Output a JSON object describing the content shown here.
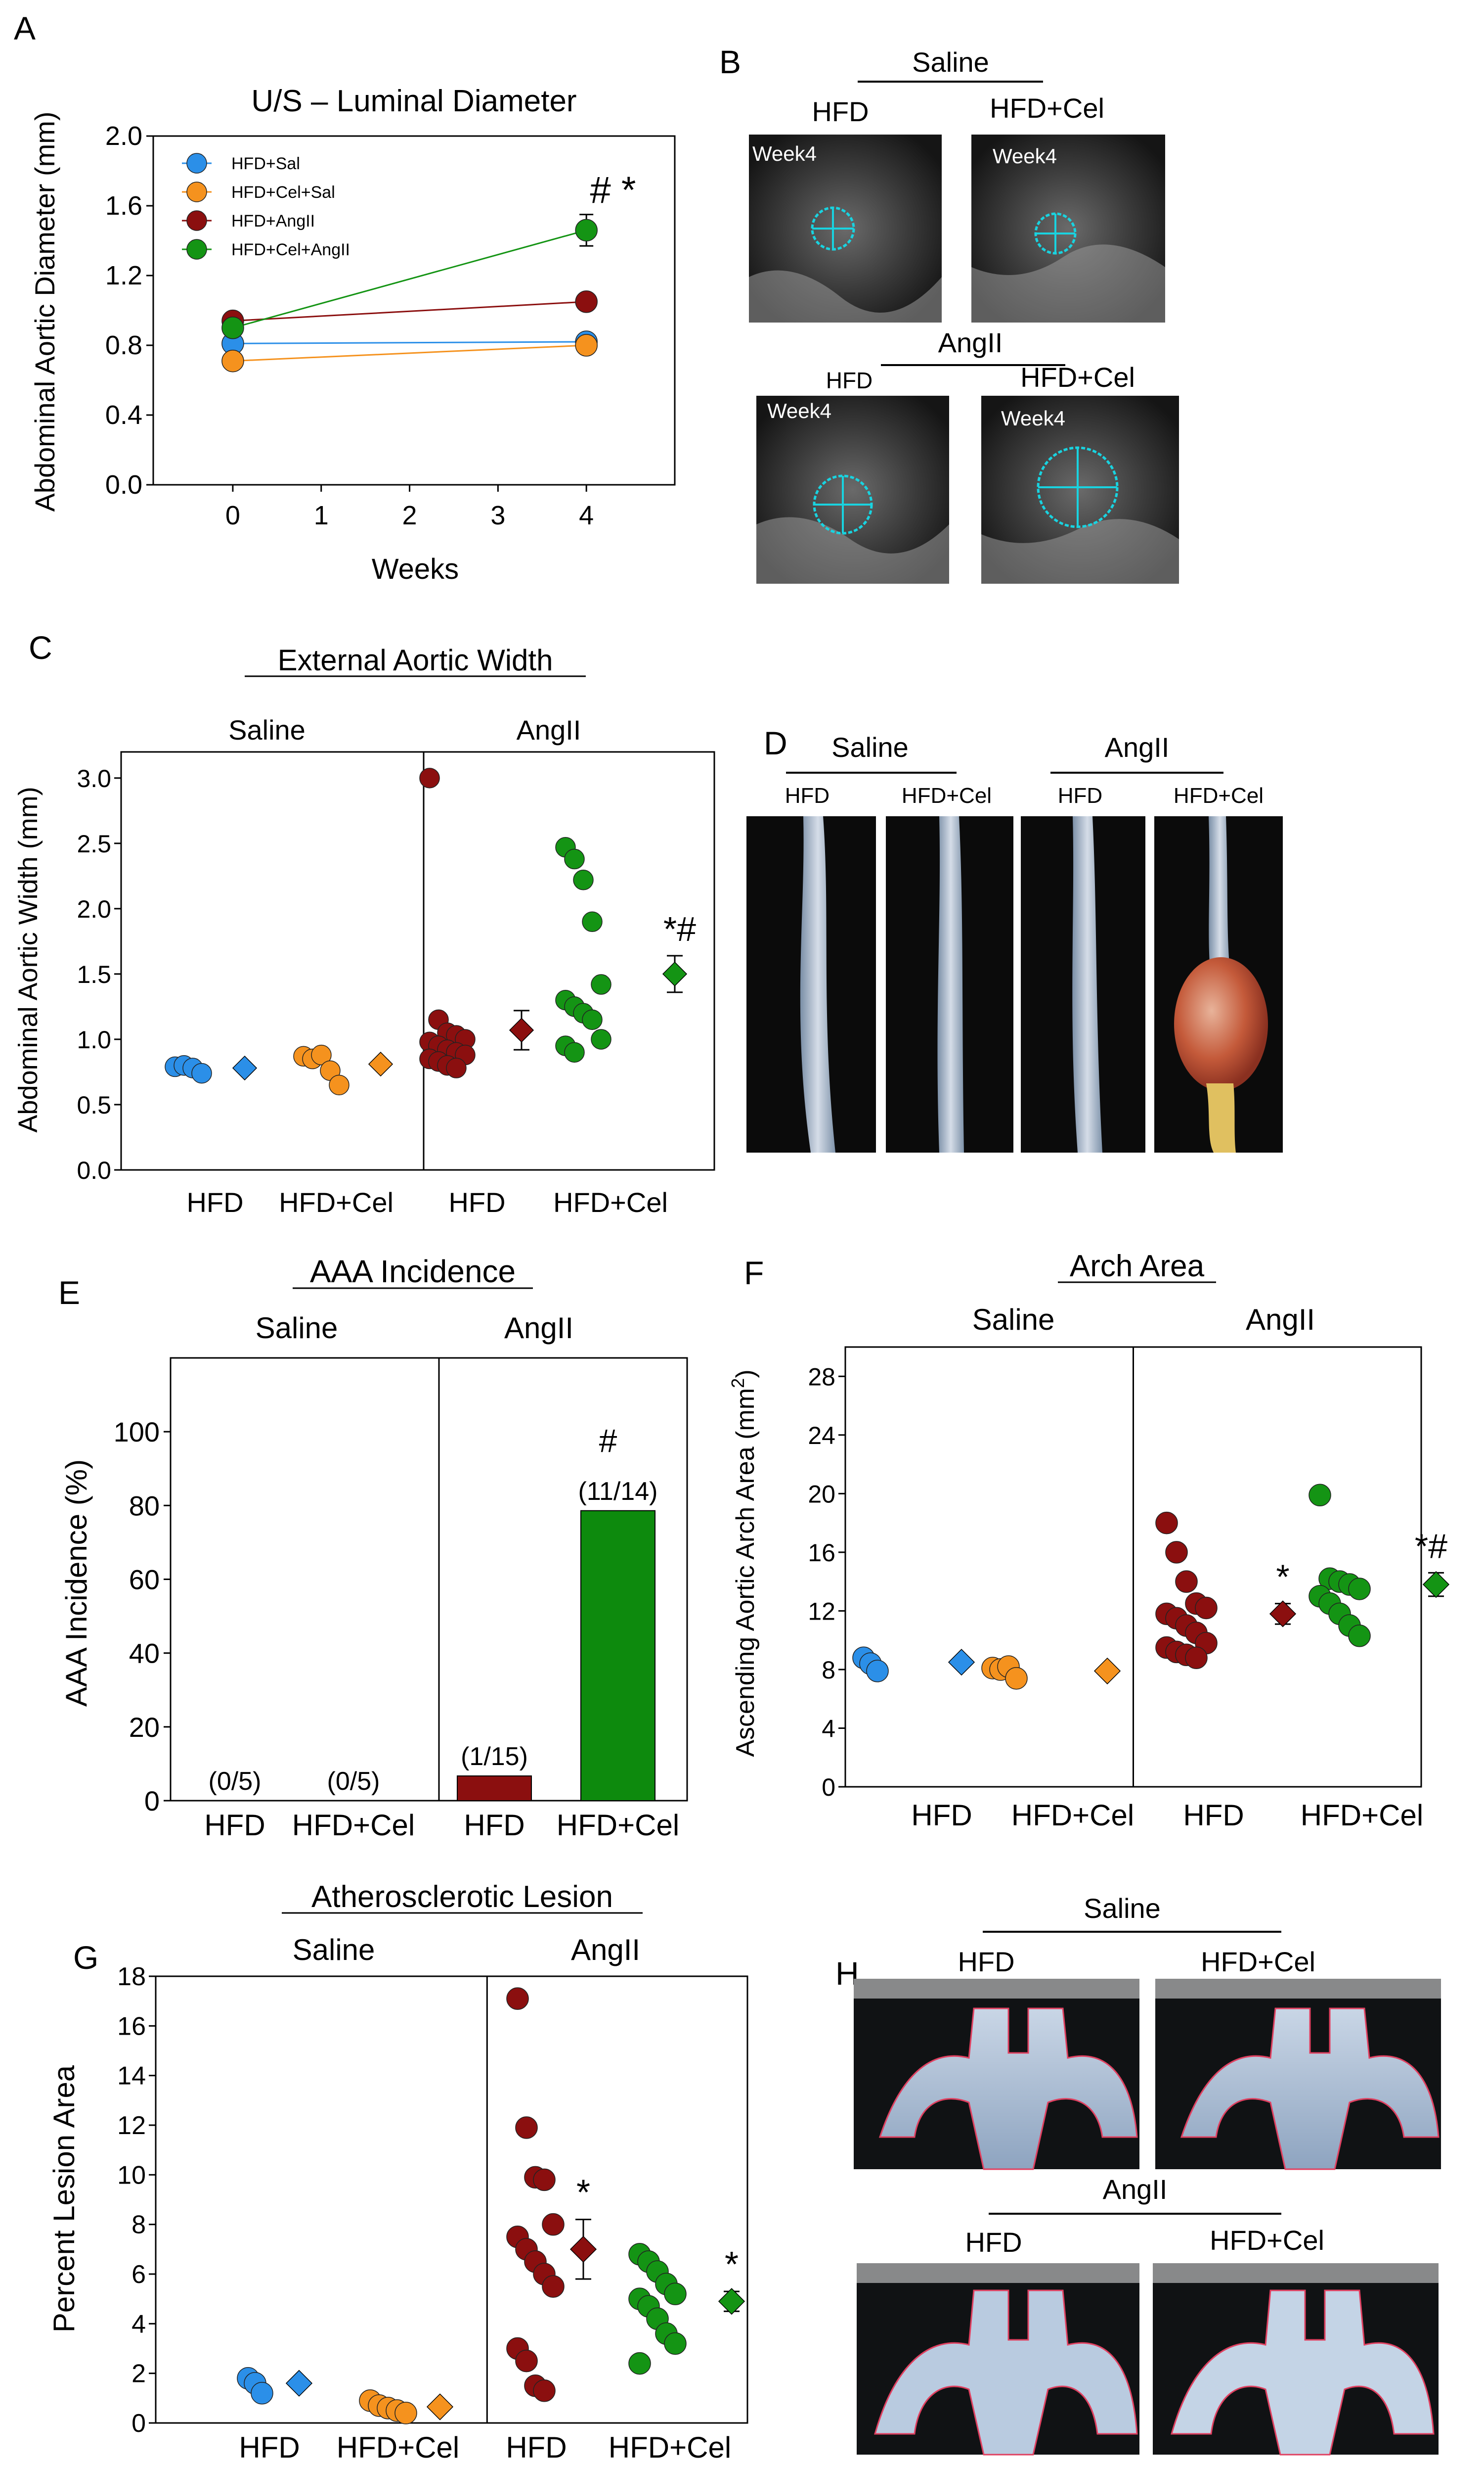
{
  "colors": {
    "blue": "#2b8fe8",
    "orange": "#f5921e",
    "darkred": "#8b0f0f",
    "green": "#149414",
    "cyan": "#19d3e0",
    "pink": "#e04060"
  },
  "panelLetters": {
    "A": "A",
    "B": "B",
    "C": "C",
    "D": "D",
    "E": "E",
    "F": "F",
    "G": "G",
    "H": "H"
  },
  "chart_data": [
    {
      "panel": "A",
      "type": "line",
      "title": "U/S – Luminal Diameter",
      "xlabel": "Weeks",
      "ylabel": "Abdominal Aortic Diameter (mm)",
      "xlim": [
        -0.9,
        5.0
      ],
      "ylim": [
        0.0,
        2.0
      ],
      "xticks": [
        "0",
        "1",
        "2",
        "3",
        "4"
      ],
      "yticks": [
        "0.0",
        "0.4",
        "0.8",
        "1.2",
        "1.6",
        "2.0"
      ],
      "x": [
        0,
        4
      ],
      "series": [
        {
          "name": "HFD+Sal",
          "color": "#2b8fe8",
          "values": [
            0.81,
            0.82
          ]
        },
        {
          "name": "HFD+Cel+Sal",
          "color": "#f5921e",
          "values": [
            0.71,
            0.8
          ]
        },
        {
          "name": "HFD+AngII",
          "color": "#8b0f0f",
          "values": [
            0.94,
            1.05
          ]
        },
        {
          "name": "HFD+Cel+AngII",
          "color": "#149414",
          "values": [
            0.9,
            1.46
          ]
        }
      ],
      "error_bars": [
        {
          "series": 3,
          "x": 4,
          "low": 1.37,
          "high": 1.55
        }
      ],
      "annotation": "# *"
    },
    {
      "panel": "C",
      "type": "scatter",
      "title": "External Aortic Width",
      "ylabel": "Abdominal Aortic Width (mm)",
      "ylim": [
        0.0,
        3.2
      ],
      "yticks": [
        "0.0",
        "0.5",
        "1.0",
        "1.5",
        "2.0",
        "2.5",
        "3.0"
      ],
      "xcats": [
        "HFD",
        "HFD+Cel",
        "HFD",
        "HFD+Cel"
      ],
      "group_labels": [
        "Saline",
        "AngII"
      ],
      "groups": [
        {
          "name": "HFD",
          "color": "#2b8fe8",
          "points": [
            0.79,
            0.8,
            0.78,
            0.74
          ],
          "mean": 0.78,
          "sem": 0.02
        },
        {
          "name": "HFD+Cel",
          "color": "#f5921e",
          "points": [
            0.87,
            0.85,
            0.88,
            0.76,
            0.65
          ],
          "mean": 0.81,
          "sem": 0.03
        },
        {
          "name": "HFD",
          "color": "#8b0f0f",
          "points": [
            3.0,
            1.15,
            1.05,
            1.03,
            1.0,
            0.98,
            0.95,
            0.92,
            0.9,
            0.88,
            0.85,
            0.83,
            0.8,
            0.78
          ],
          "mean": 1.07,
          "sem": 0.15,
          "annotation": ""
        },
        {
          "name": "HFD+Cel",
          "color": "#149414",
          "points": [
            2.47,
            2.38,
            2.22,
            1.9,
            1.42,
            1.3,
            1.25,
            1.2,
            1.15,
            1.0,
            0.95,
            0.9
          ],
          "mean": 1.5,
          "sem": 0.14,
          "annotation": "*#"
        }
      ]
    },
    {
      "panel": "E",
      "type": "bar",
      "title": "AAA Incidence",
      "ylabel": "AAA Incidence (%)",
      "ylim": [
        0,
        120
      ],
      "yticks": [
        "0",
        "20",
        "40",
        "60",
        "80",
        "100"
      ],
      "categories": [
        "HFD",
        "HFD+Cel",
        "HFD",
        "HFD+Cel"
      ],
      "group_labels": [
        "Saline",
        "AngII"
      ],
      "values": [
        0,
        0,
        6.7,
        78.6
      ],
      "colors": [
        "#2b8fe8",
        "#f5921e",
        "#8b0f0f",
        "#0d8a0d"
      ],
      "data_labels": [
        "(0/5)",
        "(0/5)",
        "(1/15)",
        "(11/14)"
      ],
      "annotation": "#"
    },
    {
      "panel": "F",
      "type": "scatter",
      "title": "Arch Area",
      "ylabel": "Ascending Aortic Arch Area (mm",
      "ylabel_sup": "2",
      "ylabel_end": ")",
      "ylim": [
        0,
        30
      ],
      "yticks": [
        "0",
        "4",
        "8",
        "12",
        "16",
        "20",
        "24",
        "28"
      ],
      "xcats": [
        "HFD",
        "HFD+Cel",
        "HFD",
        "HFD+Cel"
      ],
      "group_labels": [
        "Saline",
        "AngII"
      ],
      "groups": [
        {
          "name": "HFD",
          "color": "#2b8fe8",
          "points": [
            8.8,
            8.4,
            7.9
          ],
          "mean": 8.5,
          "sem": 0.25
        },
        {
          "name": "HFD+Cel",
          "color": "#f5921e",
          "points": [
            8.1,
            8.0,
            8.2,
            7.4
          ],
          "mean": 7.9,
          "sem": 0.2
        },
        {
          "name": "HFD",
          "color": "#8b0f0f",
          "points": [
            18.0,
            16.0,
            14.0,
            12.5,
            12.2,
            11.8,
            11.5,
            11.0,
            10.5,
            9.8,
            9.5,
            9.2,
            9.0,
            8.8
          ],
          "mean": 11.8,
          "sem": 0.7,
          "annotation": "*"
        },
        {
          "name": "HFD+Cel",
          "color": "#149414",
          "points": [
            19.9,
            14.2,
            14.0,
            13.8,
            13.5,
            13.0,
            12.5,
            11.8,
            11.0,
            10.3
          ],
          "mean": 13.8,
          "sem": 0.8,
          "annotation": "*#"
        }
      ]
    },
    {
      "panel": "G",
      "type": "scatter",
      "title": "Atherosclerotic Lesion",
      "ylabel": "Percent Lesion Area",
      "ylim": [
        0,
        18
      ],
      "yticks": [
        "0",
        "2",
        "4",
        "6",
        "8",
        "10",
        "12",
        "14",
        "16",
        "18"
      ],
      "xcats": [
        "HFD",
        "HFD+Cel",
        "HFD",
        "HFD+Cel"
      ],
      "group_labels": [
        "Saline",
        "AngII"
      ],
      "groups": [
        {
          "name": "HFD",
          "color": "#2b8fe8",
          "points": [
            1.8,
            1.6,
            1.2
          ],
          "mean": 1.6,
          "sem": 0.15
        },
        {
          "name": "HFD+Cel",
          "color": "#f5921e",
          "points": [
            0.9,
            0.7,
            0.6,
            0.5,
            0.4
          ],
          "mean": 0.65,
          "sem": 0.1
        },
        {
          "name": "HFD",
          "color": "#8b0f0f",
          "points": [
            17.1,
            11.9,
            9.9,
            9.8,
            8.0,
            7.5,
            7.0,
            6.5,
            6.0,
            5.5,
            3.0,
            2.5,
            1.5,
            1.3
          ],
          "mean": 7.0,
          "sem": 1.2,
          "annotation": "*"
        },
        {
          "name": "HFD+Cel",
          "color": "#149414",
          "points": [
            6.8,
            6.5,
            6.1,
            5.6,
            5.2,
            5.0,
            4.7,
            4.2,
            3.6,
            3.2,
            2.4
          ],
          "mean": 4.9,
          "sem": 0.4,
          "annotation": "*"
        }
      ]
    }
  ],
  "panelB": {
    "group_saline": "Saline",
    "group_angii": "AngII",
    "labels": [
      "HFD",
      "HFD+Cel",
      "HFD",
      "HFD+Cel"
    ],
    "tags": [
      "Week4",
      "Week4",
      "Week4",
      "Week4"
    ]
  },
  "panelD": {
    "group_saline": "Saline",
    "group_angii": "AngII",
    "labels": [
      "HFD",
      "HFD+Cel",
      "HFD",
      "HFD+Cel"
    ]
  },
  "panelH": {
    "group_saline": "Saline",
    "group_angii": "AngII",
    "labels": [
      "HFD",
      "HFD+Cel",
      "HFD",
      "HFD+Cel"
    ]
  }
}
